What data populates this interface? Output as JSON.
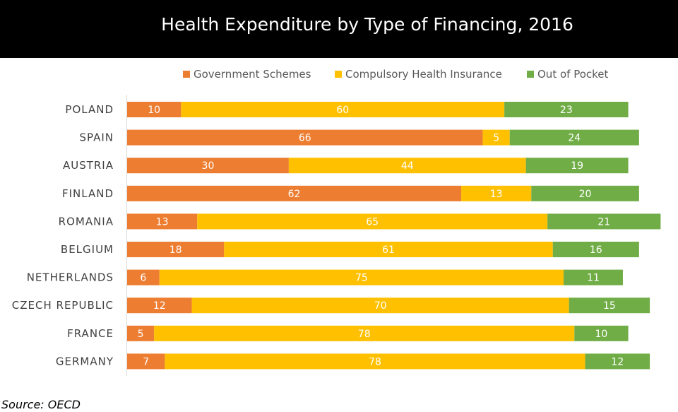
{
  "title": "Health Expenditure by Type of Financing, 2016",
  "source": "Source: OECD",
  "colors": {
    "government": "#ED7D31",
    "insurance": "#FFC000",
    "out_of_pocket": "#70AD47",
    "category_label": "#404040",
    "value_label": "#ffffff",
    "axis_line": "#d9d9d9"
  },
  "chart_data": {
    "type": "bar",
    "orientation": "horizontal",
    "stacked": true,
    "categories": [
      "POLAND",
      "SPAIN",
      "AUSTRIA",
      "FINLAND",
      "ROMANIA",
      "BELGIUM",
      "NETHERLANDS",
      "CZECH REPUBLIC",
      "FRANCE",
      "GERMANY"
    ],
    "series": [
      {
        "name": "Government Schemes",
        "color": "#ED7D31",
        "values": [
          10,
          66,
          30,
          62,
          13,
          18,
          6,
          12,
          5,
          7
        ]
      },
      {
        "name": "Compulsory Health Insurance",
        "color": "#FFC000",
        "values": [
          60,
          5,
          44,
          13,
          65,
          61,
          75,
          70,
          78,
          78
        ]
      },
      {
        "name": "Out of Pocket",
        "color": "#70AD47",
        "values": [
          23,
          24,
          19,
          20,
          21,
          16,
          11,
          15,
          10,
          12
        ]
      }
    ],
    "legend_position": "top",
    "data_labels": true,
    "grid": false,
    "xlim": [
      0,
      100
    ]
  }
}
